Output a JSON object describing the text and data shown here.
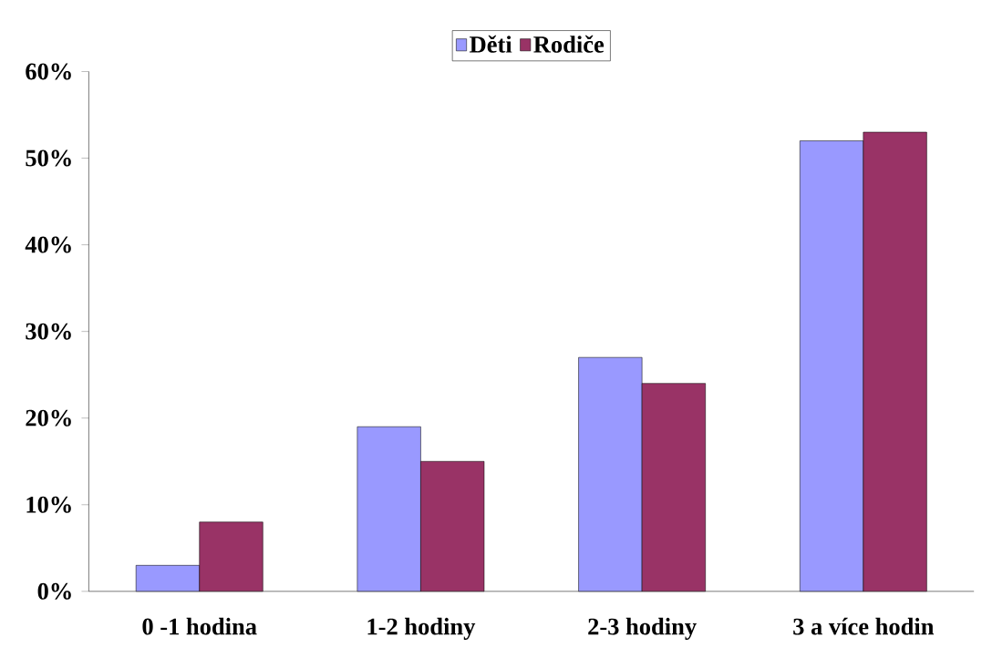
{
  "chart_data": {
    "type": "bar",
    "categories": [
      "0 -1 hodina",
      "1-2 hodiny",
      "2-3 hodiny",
      "3 a více hodin"
    ],
    "series": [
      {
        "name": "Děti",
        "color": "#9999ff",
        "values": [
          3,
          19,
          27,
          52
        ]
      },
      {
        "name": "Rodiče",
        "color": "#993366",
        "values": [
          8,
          15,
          24,
          53
        ]
      }
    ],
    "ylim": [
      0,
      60
    ],
    "yticks": [
      {
        "value": 0,
        "label": "0%"
      },
      {
        "value": 10,
        "label": "10%"
      },
      {
        "value": 20,
        "label": "20%"
      },
      {
        "value": 30,
        "label": "30%"
      },
      {
        "value": 40,
        "label": "40%"
      },
      {
        "value": 50,
        "label": "50%"
      },
      {
        "value": 60,
        "label": "60%"
      }
    ],
    "legend": "top",
    "grid": false
  }
}
